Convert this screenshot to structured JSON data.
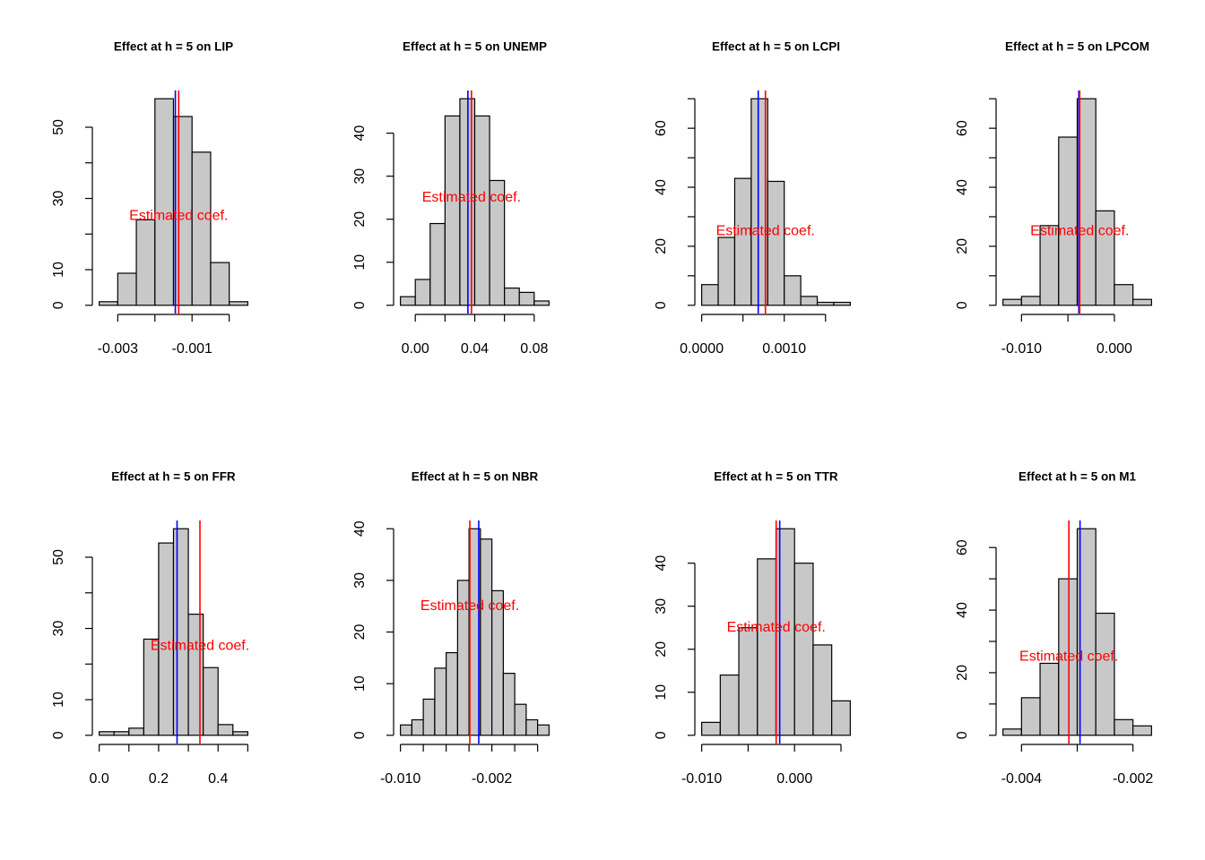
{
  "chart_data": [
    {
      "type": "histogram",
      "title": "Effect at h = 5 on LIP",
      "bins": [
        -0.0035,
        -0.003,
        -0.0025,
        -0.002,
        -0.0015,
        -0.001,
        -0.0005,
        0,
        0.0005
      ],
      "counts": [
        1,
        9,
        24,
        58,
        53,
        43,
        12,
        1
      ],
      "color": "#c8c8c8",
      "xlim": [
        -0.00366,
        0.00066
      ],
      "ylim": [
        -2.32,
        60.32
      ],
      "xticks": [
        -0.003,
        {
          "value": -0.002,
          "label": null
        },
        -0.001,
        {
          "value": 0,
          "label": null
        }
      ],
      "yticks": [
        0,
        10,
        {
          "value": 20,
          "label": null
        },
        30,
        {
          "value": 40,
          "label": null
        },
        50
      ],
      "vlines": [
        {
          "value": -0.00145,
          "color": "#0000ff"
        },
        {
          "value": -0.00136,
          "color": "#ff0000"
        }
      ],
      "annotation": {
        "text": "Estimated coef.",
        "y": 25,
        "color": "#ff0000"
      }
    },
    {
      "type": "histogram",
      "title": "Effect at h = 5 on UNEMP",
      "bins": [
        -0.01,
        0,
        0.01,
        0.02,
        0.03,
        0.04,
        0.05,
        0.06,
        0.07,
        0.08,
        0.09
      ],
      "counts": [
        2,
        6,
        19,
        44,
        48,
        44,
        29,
        4,
        3,
        1
      ],
      "color": "#c8c8c8",
      "xlim": [
        -0.014,
        0.094
      ],
      "ylim": [
        -1.92,
        49.92
      ],
      "xticks": [
        {
          "value": 0,
          "label": "0.00"
        },
        {
          "value": 0.02,
          "label": null
        },
        {
          "value": 0.04,
          "label": "0.04"
        },
        {
          "value": 0.06,
          "label": null
        },
        {
          "value": 0.08,
          "label": "0.08"
        }
      ],
      "yticks": [
        0,
        10,
        20,
        30,
        40
      ],
      "vlines": [
        {
          "value": 0.0354,
          "color": "#0000ff"
        },
        {
          "value": 0.0378,
          "color": "#ff0000"
        }
      ],
      "annotation": {
        "text": "Estimated coef.",
        "y": 25,
        "color": "#ff0000"
      }
    },
    {
      "type": "histogram",
      "title": "Effect at h = 5 on LCPI",
      "bins": [
        0,
        0.0002,
        0.0004,
        0.0006,
        0.0008,
        0.001,
        0.0012,
        0.0014,
        0.0016,
        0.0018
      ],
      "counts": [
        7,
        23,
        43,
        70,
        42,
        10,
        3,
        1,
        1
      ],
      "color": "#c8c8c8",
      "xlim": [
        -7.2e-05,
        0.001872
      ],
      "ylim": [
        -2.8,
        72.8
      ],
      "xticks": [
        {
          "value": 0,
          "label": "0.0000"
        },
        {
          "value": 0.0005,
          "label": null
        },
        {
          "value": 0.001,
          "label": "0.0010"
        },
        {
          "value": 0.0015,
          "label": null
        }
      ],
      "yticks": [
        0,
        {
          "value": 10,
          "label": null
        },
        20,
        {
          "value": 30,
          "label": null
        },
        40,
        {
          "value": 50,
          "label": null
        },
        60,
        {
          "value": 70,
          "label": null
        }
      ],
      "vlines": [
        {
          "value": 0.000685,
          "color": "#0000ff"
        },
        {
          "value": 0.000772,
          "color": "#ff0000"
        }
      ],
      "annotation": {
        "text": "Estimated coef.",
        "y": 25,
        "color": "#ff0000"
      }
    },
    {
      "type": "histogram",
      "title": "Effect at h = 5 on LPCOM",
      "bins": [
        -0.012,
        -0.01,
        -0.008,
        -0.006,
        -0.004,
        -0.002,
        0,
        0.002,
        0.004
      ],
      "counts": [
        2,
        3,
        27,
        57,
        70,
        32,
        7,
        2
      ],
      "color": "#c8c8c8",
      "xlim": [
        -0.01264,
        0.00464
      ],
      "ylim": [
        -2.8,
        72.8
      ],
      "xticks": [
        {
          "value": -0.01,
          "label": "-0.010"
        },
        {
          "value": -0.005,
          "label": null
        },
        {
          "value": 0,
          "label": "0.000"
        }
      ],
      "yticks": [
        0,
        {
          "value": 10,
          "label": null
        },
        20,
        {
          "value": 30,
          "label": null
        },
        40,
        {
          "value": 50,
          "label": null
        },
        60,
        {
          "value": 70,
          "label": null
        }
      ],
      "vlines": [
        {
          "value": -0.00383,
          "color": "#0000ff"
        },
        {
          "value": -0.00373,
          "color": "#ff0000"
        }
      ],
      "annotation": {
        "text": "Estimated coef.",
        "y": 25,
        "color": "#ff0000"
      }
    },
    {
      "type": "histogram",
      "title": "Effect at h = 5 on FFR",
      "bins": [
        0,
        0.05,
        0.1,
        0.15,
        0.2,
        0.25,
        0.3,
        0.35,
        0.4,
        0.45,
        0.5
      ],
      "counts": [
        1,
        1,
        2,
        27,
        54,
        58,
        34,
        19,
        3,
        1
      ],
      "color": "#c8c8c8",
      "xlim": [
        -0.02,
        0.52
      ],
      "ylim": [
        -2.32,
        60.32
      ],
      "xticks": [
        {
          "value": 0,
          "label": "0.0"
        },
        {
          "value": 0.1,
          "label": null
        },
        0.2,
        {
          "value": 0.3,
          "label": null
        },
        0.4,
        {
          "value": 0.5,
          "label": null
        }
      ],
      "yticks": [
        0,
        10,
        {
          "value": 20,
          "label": null
        },
        30,
        {
          "value": 40,
          "label": null
        },
        50
      ],
      "vlines": [
        {
          "value": 0.262,
          "color": "#0000ff"
        },
        {
          "value": 0.339,
          "color": "#ff0000"
        }
      ],
      "annotation": {
        "text": "Estimated coef.",
        "y": 25,
        "color": "#ff0000"
      }
    },
    {
      "type": "histogram",
      "title": "Effect at h = 5 on NBR",
      "bins": [
        -0.01,
        -0.009,
        -0.008,
        -0.007,
        -0.006,
        -0.005,
        -0.004,
        -0.003,
        -0.002,
        -0.001,
        0,
        0.001,
        0.002,
        0.003
      ],
      "counts": [
        2,
        3,
        7,
        13,
        16,
        30,
        40,
        38,
        28,
        12,
        6,
        3,
        2
      ],
      "color": "#c8c8c8",
      "xlim": [
        -0.01052,
        0.00352
      ],
      "ylim": [
        -1.6,
        41.6
      ],
      "xticks": [
        {
          "value": -0.01,
          "label": "-0.010"
        },
        {
          "value": -0.008,
          "label": null
        },
        {
          "value": -0.006,
          "label": null
        },
        {
          "value": -0.004,
          "label": null
        },
        -0.002,
        {
          "value": 0,
          "label": null
        },
        {
          "value": 0.002,
          "label": null
        }
      ],
      "yticks": [
        0,
        10,
        20,
        30,
        40
      ],
      "vlines": [
        {
          "value": -0.00315,
          "color": "#0000ff"
        },
        {
          "value": -0.00393,
          "color": "#ff0000"
        }
      ],
      "annotation": {
        "text": "Estimated coef.",
        "y": 25,
        "color": "#ff0000"
      }
    },
    {
      "type": "histogram",
      "title": "Effect at h = 5 on TTR",
      "bins": [
        -0.01,
        -0.008,
        -0.006,
        -0.004,
        -0.002,
        0,
        0.002,
        0.004,
        0.006
      ],
      "counts": [
        3,
        14,
        25,
        41,
        48,
        40,
        21,
        8
      ],
      "color": "#c8c8c8",
      "xlim": [
        -0.01064,
        0.00664
      ],
      "ylim": [
        -1.92,
        49.92
      ],
      "xticks": [
        {
          "value": -0.01,
          "label": "-0.010"
        },
        {
          "value": -0.005,
          "label": null
        },
        {
          "value": 0,
          "label": "0.000"
        },
        {
          "value": 0.005,
          "label": null
        }
      ],
      "yticks": [
        0,
        10,
        20,
        30,
        40
      ],
      "vlines": [
        {
          "value": -0.0016,
          "color": "#0000ff"
        },
        {
          "value": -0.00198,
          "color": "#ff0000"
        }
      ],
      "annotation": {
        "text": "Estimated coef.",
        "y": 25,
        "color": "#ff0000"
      }
    },
    {
      "type": "histogram",
      "title": "Effect at h = 5 on M1",
      "bins": [
        -0.004333,
        -0.004,
        -0.003667,
        -0.003333,
        -0.003,
        -0.002667,
        -0.002333,
        -0.002,
        -0.001667
      ],
      "counts": [
        2,
        12,
        23,
        50,
        66,
        39,
        5,
        3
      ],
      "color": "#c8c8c8",
      "xlim": [
        -0.00444,
        -0.00156
      ],
      "ylim": [
        -2.64,
        68.64
      ],
      "xticks": [
        -0.004,
        {
          "value": -0.003,
          "label": null
        },
        -0.002
      ],
      "yticks": [
        0,
        {
          "value": 10,
          "label": null
        },
        20,
        {
          "value": 30,
          "label": null
        },
        40,
        {
          "value": 50,
          "label": null
        },
        60
      ],
      "vlines": [
        {
          "value": -0.00295,
          "color": "#0000ff"
        },
        {
          "value": -0.00315,
          "color": "#ff0000"
        }
      ],
      "annotation": {
        "text": "Estimated coef.",
        "y": 25,
        "color": "#ff0000"
      }
    }
  ]
}
